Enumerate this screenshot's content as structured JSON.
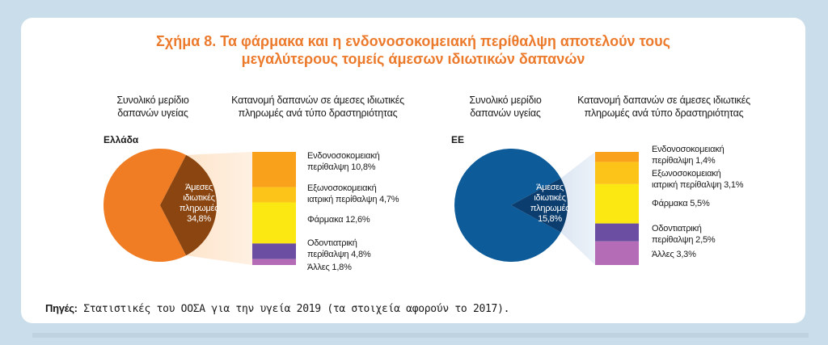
{
  "title_line1": "Σχήμα 8. Τα φάρμακα και η ενδονοσοκομειακή περίθαλψη αποτελούν τους",
  "title_line2": "μεγαλύτερους τομείς άμεσων ιδιωτικών δαπανών",
  "headers": {
    "pie_line1": "Συνολικό μερίδιο",
    "pie_line2": "δαπανών υγείας",
    "bar_line1": "Κατανομή δαπανών σε άμεσες ιδιωτικές",
    "bar_line2": "πληρωμές ανά τύπο δραστηριότητας"
  },
  "source_label": "Πηγές:",
  "source_text": "Στατιστικές του ΟΟΣΑ για την υγεία 2019 (τα στοιχεία αφορούν το 2017).",
  "chart_data": [
    {
      "type": "pie",
      "title": "Ελλάδα",
      "slices": [
        {
          "label_lines": [
            "Άμεσες",
            "ιδιωτικές",
            "πληρωμές",
            "34,8%"
          ],
          "value": 34.8,
          "color": "#8a4510"
        },
        {
          "label_lines": [],
          "value": 65.2,
          "color": "#f07d23"
        }
      ],
      "breakdown": [
        {
          "label_lines": [
            "Ενδονοσοκομειακή",
            "περίθαλψη 10,8%"
          ],
          "value": 10.8,
          "color": "#f9a11b"
        },
        {
          "label_lines": [
            "Εξωνοσοκομειακή",
            "ιατρική περίθαλψη 4,7%"
          ],
          "value": 4.7,
          "color": "#fcc318"
        },
        {
          "label_lines": [
            "Φάρμακα 12,6%"
          ],
          "value": 12.6,
          "color": "#fbe812"
        },
        {
          "label_lines": [
            "Οδοντιατρική",
            "περίθαλψη 4,8%"
          ],
          "value": 4.8,
          "color": "#6b4ea2"
        },
        {
          "label_lines": [
            "Άλλες 1,8%"
          ],
          "value": 1.8,
          "color": "#b46cb7"
        }
      ]
    },
    {
      "type": "pie",
      "title": "ΕΕ",
      "slices": [
        {
          "label_lines": [
            "Άμεσες",
            "ιδιωτικές",
            "πληρωμές",
            "15,8%"
          ],
          "value": 15.8,
          "color": "#0b3d6e"
        },
        {
          "label_lines": [],
          "value": 84.2,
          "color": "#0e5b99"
        }
      ],
      "breakdown": [
        {
          "label_lines": [
            "Ενδονοσοκομειακή",
            "περίθαλψη 1,4%"
          ],
          "value": 1.4,
          "color": "#f9a11b"
        },
        {
          "label_lines": [
            "Εξωνοσοκομειακή",
            "ιατρική περίθαλψη 3,1%"
          ],
          "value": 3.1,
          "color": "#fcc318"
        },
        {
          "label_lines": [
            "Φάρμακα 5,5%"
          ],
          "value": 5.5,
          "color": "#fbe812"
        },
        {
          "label_lines": [
            "Οδοντιατρική",
            "περίθαλψη 2,5%"
          ],
          "value": 2.5,
          "color": "#6b4ea2"
        },
        {
          "label_lines": [
            "Άλλες 3,3%"
          ],
          "value": 3.3,
          "color": "#b46cb7"
        }
      ]
    }
  ]
}
